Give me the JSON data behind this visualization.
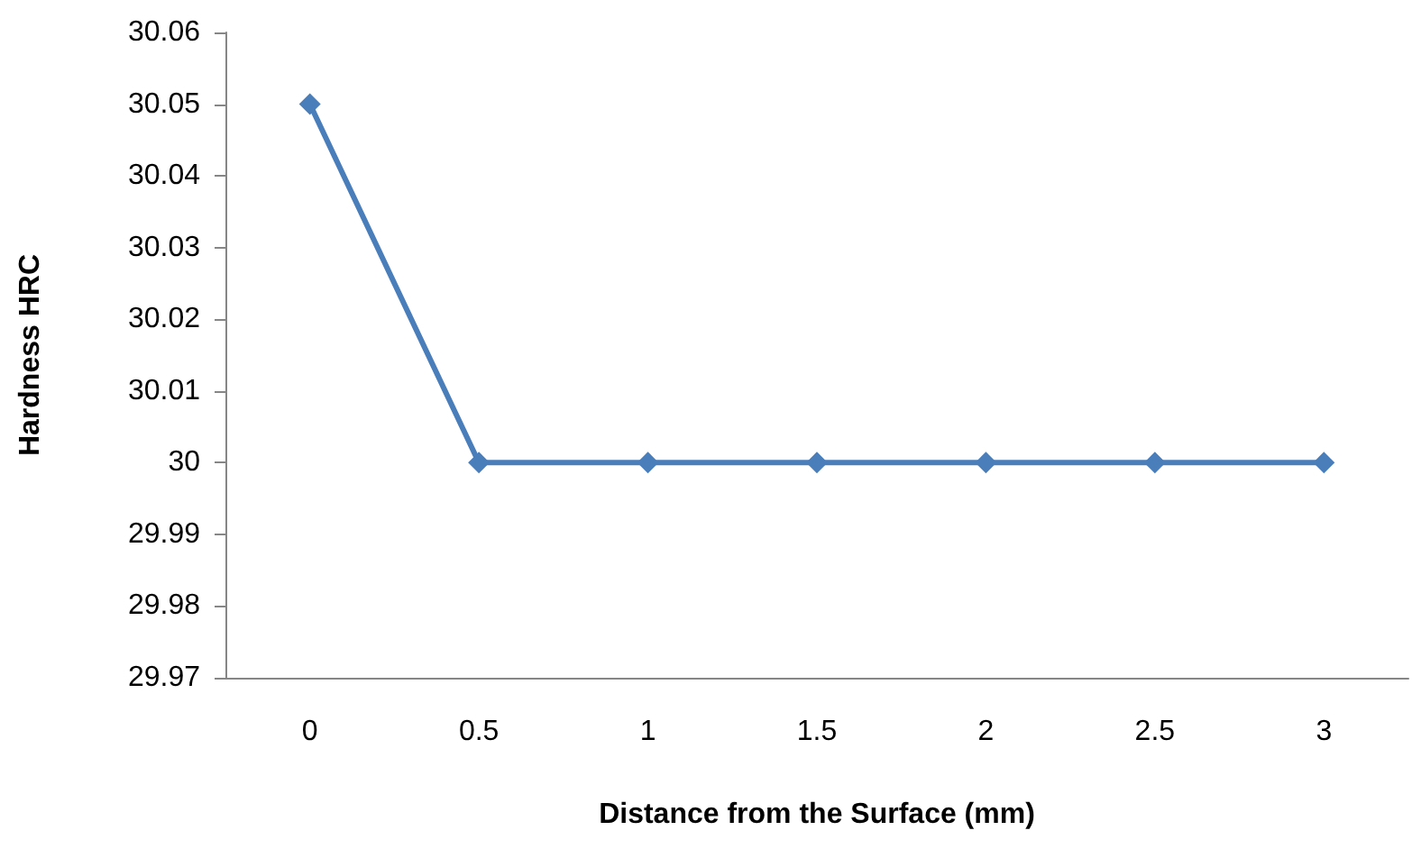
{
  "chart_data": {
    "type": "line",
    "xlabel": "Distance from the Surface (mm)",
    "ylabel": "Hardness HRC",
    "categories": [
      "0",
      "0.5",
      "1",
      "1.5",
      "2",
      "2.5",
      "3"
    ],
    "series": [
      {
        "color": "#4a7ebb",
        "values": [
          30.05,
          30,
          30,
          30,
          30,
          30,
          30
        ]
      }
    ],
    "ylim": [
      29.97,
      30.06
    ],
    "yticks": [
      29.97,
      29.98,
      29.99,
      30,
      30.01,
      30.02,
      30.03,
      30.04,
      30.05,
      30.06
    ],
    "marker": "diamond"
  }
}
